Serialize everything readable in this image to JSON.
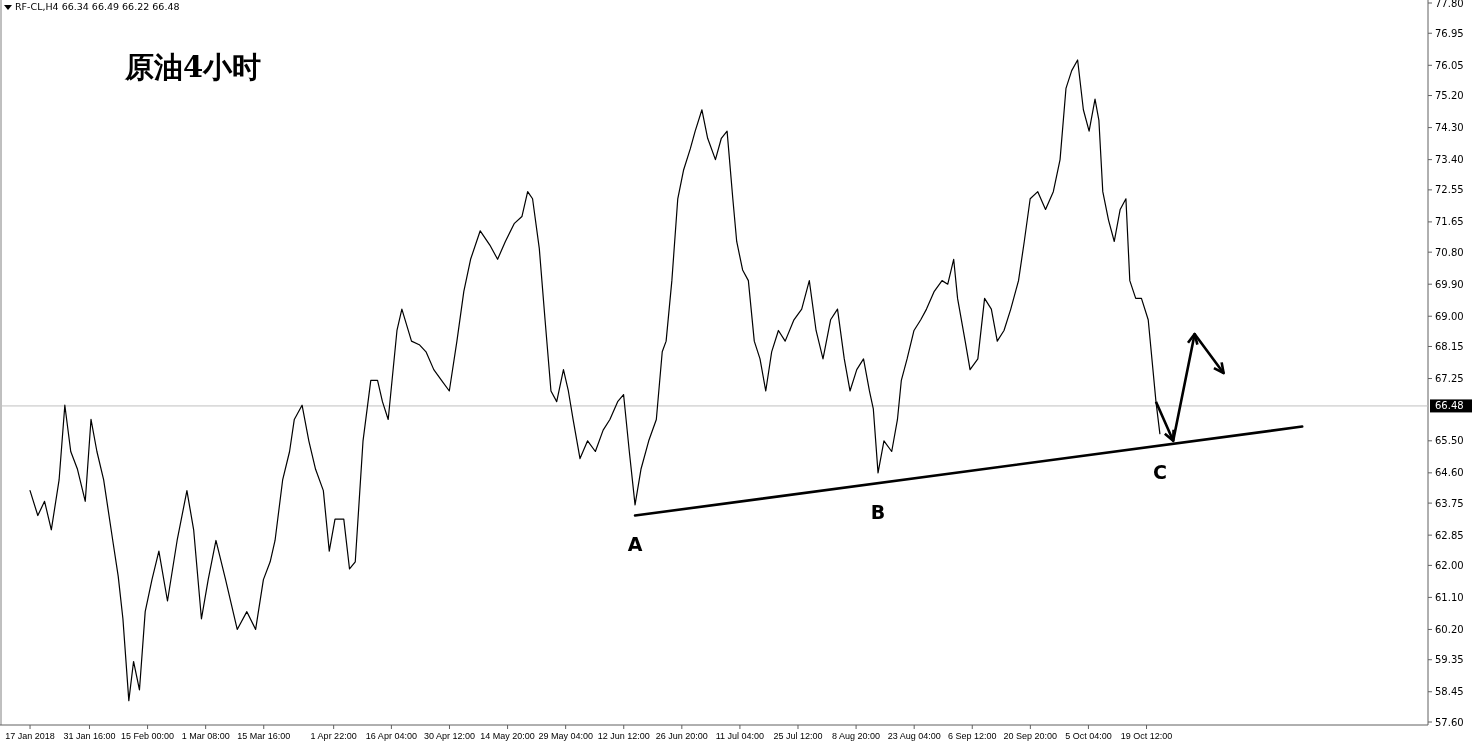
{
  "chart_data": {
    "type": "line",
    "title": "原油4小时",
    "annotations": [
      "RF-CL,H4  66.34 66.49 66.22 66.48",
      {
        "text": "A",
        "x": "2018-06-15T07:00",
        "y": 63.4
      },
      {
        "text": "B",
        "x": "2018-08-14T06:00",
        "y": 64.3
      },
      {
        "text": "C",
        "x": "2018-10-22T19:00",
        "y": 65.4
      }
    ],
    "xlim": [
      "2018-01-09T20:00",
      "2018-12-27T23:00"
    ],
    "ylim": [
      57.6,
      77.8
    ],
    "xticks": [
      {
        "value": "2018-01-17T00:00",
        "label": "17 Jan 2018"
      },
      {
        "value": "2018-01-31T16:00",
        "label": "31 Jan 16:00"
      },
      {
        "value": "2018-02-15T00:00",
        "label": "15 Feb 00:00"
      },
      {
        "value": "2018-03-01T08:00",
        "label": "1 Mar 08:00"
      },
      {
        "value": "2018-03-15T16:00",
        "label": "15 Mar 16:00"
      },
      {
        "value": "2018-04-01T22:00",
        "label": "1 Apr 22:00"
      },
      {
        "value": "2018-04-16T04:00",
        "label": "16 Apr 04:00"
      },
      {
        "value": "2018-04-30T12:00",
        "label": "30 Apr 12:00"
      },
      {
        "value": "2018-05-14T20:00",
        "label": "14 May 20:00"
      },
      {
        "value": "2018-05-29T04:00",
        "label": "29 May 04:00"
      },
      {
        "value": "2018-06-12T12:00",
        "label": "12 Jun 12:00"
      },
      {
        "value": "2018-06-26T20:00",
        "label": "26 Jun 20:00"
      },
      {
        "value": "2018-07-11T04:00",
        "label": "11 Jul 04:00"
      },
      {
        "value": "2018-07-25T12:00",
        "label": "25 Jul 12:00"
      },
      {
        "value": "2018-08-08T20:00",
        "label": "8 Aug 20:00"
      },
      {
        "value": "2018-08-23T04:00",
        "label": "23 Aug 04:00"
      },
      {
        "value": "2018-09-06T12:00",
        "label": "6 Sep 12:00"
      },
      {
        "value": "2018-09-20T20:00",
        "label": "20 Sep 20:00"
      },
      {
        "value": "2018-10-05T04:00",
        "label": "5 Oct 04:00"
      },
      {
        "value": "2018-10-19T12:00",
        "label": "19 Oct 12:00"
      }
    ],
    "yticks": [
      {
        "value": 57.6,
        "label": "57.60"
      },
      {
        "value": 58.45,
        "label": "58.45"
      },
      {
        "value": 59.35,
        "label": "59.35"
      },
      {
        "value": 60.2,
        "label": "60.20"
      },
      {
        "value": 61.1,
        "label": "61.10"
      },
      {
        "value": 62.0,
        "label": "62.00"
      },
      {
        "value": 62.85,
        "label": "62.85"
      },
      {
        "value": 63.75,
        "label": "63.75"
      },
      {
        "value": 64.6,
        "label": "64.60"
      },
      {
        "value": 65.5,
        "label": "65.50"
      },
      {
        "value": 67.25,
        "label": "67.25"
      },
      {
        "value": 68.15,
        "label": "68.15"
      },
      {
        "value": 69.0,
        "label": "69.00"
      },
      {
        "value": 69.9,
        "label": "69.90"
      },
      {
        "value": 70.8,
        "label": "70.80"
      },
      {
        "value": 71.65,
        "label": "71.65"
      },
      {
        "value": 72.55,
        "label": "72.55"
      },
      {
        "value": 73.4,
        "label": "73.40"
      },
      {
        "value": 74.3,
        "label": "74.30"
      },
      {
        "value": 75.2,
        "label": "75.20"
      },
      {
        "value": 76.05,
        "label": "76.05"
      },
      {
        "value": 76.95,
        "label": "76.95"
      },
      {
        "value": 77.8,
        "label": "77.80"
      }
    ],
    "ref_lines": [
      {
        "axis": "y",
        "value": 66.48,
        "label": "66.48",
        "color": "#c0c0c0"
      }
    ],
    "series": [
      {
        "color": "#000000",
        "x": [
          "2018-01-17T00:00",
          "2018-01-18T22:00",
          "2018-01-20T14:00",
          "2018-01-22T06:00",
          "2018-01-24T04:00",
          "2018-01-25T14:00",
          "2018-01-27T01:00",
          "2018-01-28T17:00",
          "2018-01-30T15:00",
          "2018-02-01T01:00",
          "2018-02-02T12:00",
          "2018-02-04T04:00",
          "2018-02-06T13:00",
          "2018-02-07T18:00",
          "2018-02-08T22:00",
          "2018-02-10T09:00",
          "2018-02-11T13:00",
          "2018-02-13T00:00",
          "2018-02-14T10:00",
          "2018-02-16T02:00",
          "2018-02-17T19:00",
          "2018-02-19T22:00",
          "2018-02-22T07:00",
          "2018-02-24T17:00",
          "2018-02-26T09:00",
          "2018-02-28T07:00",
          "2018-03-01T23:00",
          "2018-03-03T21:00",
          "2018-03-06T06:00",
          "2018-03-09T03:00",
          "2018-03-11T12:00",
          "2018-03-13T16:00",
          "2018-03-15T14:00",
          "2018-03-17T06:00",
          "2018-03-18T11:00",
          "2018-03-20T08:00",
          "2018-03-22T01:00",
          "2018-03-23T05:00",
          "2018-03-25T03:00",
          "2018-03-26T19:00",
          "2018-03-28T11:00",
          "2018-03-30T09:00",
          "2018-03-31T20:00",
          "2018-04-02T06:00",
          "2018-04-04T10:00",
          "2018-04-05T20:00",
          "2018-04-07T06:00",
          "2018-04-09T04:00",
          "2018-04-11T02:00",
          "2018-04-12T18:00",
          "2018-04-13T23:00",
          "2018-04-15T09:00",
          "2018-04-17T13:00",
          "2018-04-18T18:00",
          "2018-04-21T03:00",
          "2018-04-23T01:00",
          "2018-04-24T17:00",
          "2018-04-26T15:00",
          "2018-04-28T13:00",
          "2018-04-30T11:00",
          "2018-05-02T08:00",
          "2018-05-04T01:00",
          "2018-05-05T17:00",
          "2018-05-08T02:00",
          "2018-05-10T11:00",
          "2018-05-12T09:00",
          "2018-05-14T07:00",
          "2018-05-16T11:00",
          "2018-05-18T09:00",
          "2018-05-19T19:00",
          "2018-05-21T00:00",
          "2018-05-22T16:00",
          "2018-05-24T02:00",
          "2018-05-25T13:00",
          "2018-05-26T23:00",
          "2018-05-28T15:00",
          "2018-05-29T20:00",
          "2018-05-31T00:00",
          "2018-06-01T17:00",
          "2018-06-03T14:00",
          "2018-06-05T12:00",
          "2018-06-07T10:00",
          "2018-06-09T02:00",
          "2018-06-11T00:00",
          "2018-06-12T11:00",
          "2018-06-13T21:00",
          "2018-06-15T07:00",
          "2018-06-16T18:00",
          "2018-06-18T16:00",
          "2018-06-20T13:00",
          "2018-06-22T00:00",
          "2018-06-22T23:00",
          "2018-06-24T09:00",
          "2018-06-25T20:00",
          "2018-06-27T06:00",
          "2018-06-28T22:00",
          "2018-06-30T03:00",
          "2018-07-01T19:00",
          "2018-07-03T05:00",
          "2018-07-05T03:00",
          "2018-07-06T14:00",
          "2018-07-08T00:00",
          "2018-07-09T10:00",
          "2018-07-10T09:00",
          "2018-07-11T20:00",
          "2018-07-13T06:00",
          "2018-07-14T17:00",
          "2018-07-16T03:00",
          "2018-07-17T13:00",
          "2018-07-19T00:00",
          "2018-07-20T16:00",
          "2018-07-22T08:00",
          "2018-07-24T12:00",
          "2018-07-26T10:00",
          "2018-07-28T07:00",
          "2018-07-29T23:00",
          "2018-07-31T16:00",
          "2018-08-02T13:00",
          "2018-08-04T06:00",
          "2018-08-05T22:00",
          "2018-08-07T08:00",
          "2018-08-09T00:00",
          "2018-08-10T16:00",
          "2018-08-12T03:00",
          "2018-08-13T02:00",
          "2018-08-14T06:00",
          "2018-08-15T17:00",
          "2018-08-17T15:00",
          "2018-08-19T01:00",
          "2018-08-20T00:00",
          "2018-08-21T10:00",
          "2018-08-23T03:00",
          "2018-08-24T19:00",
          "2018-08-26T05:00",
          "2018-08-28T03:00",
          "2018-08-30T01:00",
          "2018-08-31T11:00",
          "2018-09-01T22:00",
          "2018-09-02T21:00",
          "2018-09-04T18:00",
          "2018-09-05T23:00",
          "2018-09-07T21:00",
          "2018-09-09T13:00",
          "2018-09-11T05:00",
          "2018-09-12T16:00",
          "2018-09-14T08:00",
          "2018-09-16T00:00",
          "2018-09-17T22:00",
          "2018-09-19T08:00",
          "2018-09-20T19:00",
          "2018-09-22T16:00",
          "2018-09-24T14:00",
          "2018-09-26T12:00",
          "2018-09-28T04:00",
          "2018-09-29T15:00",
          "2018-10-01T01:00",
          "2018-10-02T12:00",
          "2018-10-03T22:00",
          "2018-10-05T08:00",
          "2018-10-06T19:00",
          "2018-10-07T18:00",
          "2018-10-08T17:00",
          "2018-10-10T03:00",
          "2018-10-11T13:00",
          "2018-10-13T00:00",
          "2018-10-14T10:00",
          "2018-10-15T09:00",
          "2018-10-16T20:00",
          "2018-10-18T06:00",
          "2018-10-19T22:00",
          "2018-10-21T20:00",
          "2018-10-22T19:00"
        ],
        "values": [
          64.1,
          63.4,
          63.8,
          63.0,
          64.4,
          66.5,
          65.2,
          64.7,
          63.8,
          66.1,
          65.2,
          64.4,
          62.6,
          61.7,
          60.5,
          58.2,
          59.3,
          58.5,
          60.7,
          61.6,
          62.4,
          61.0,
          62.7,
          64.1,
          63.0,
          60.5,
          61.6,
          62.7,
          61.6,
          60.2,
          60.7,
          60.2,
          61.6,
          62.1,
          62.7,
          64.4,
          65.2,
          66.1,
          66.5,
          65.5,
          64.7,
          64.1,
          62.4,
          63.3,
          63.3,
          61.9,
          62.1,
          65.5,
          67.2,
          67.2,
          66.6,
          66.1,
          68.6,
          69.2,
          68.3,
          68.2,
          68.0,
          67.5,
          67.2,
          66.9,
          68.3,
          69.7,
          70.6,
          71.4,
          71.0,
          70.6,
          71.1,
          71.6,
          71.8,
          72.5,
          72.3,
          70.9,
          68.9,
          66.9,
          66.6,
          67.5,
          66.9,
          66.1,
          65.0,
          65.5,
          65.2,
          65.8,
          66.1,
          66.6,
          66.8,
          65.2,
          63.7,
          64.7,
          65.5,
          66.1,
          68.0,
          68.3,
          70.0,
          72.3,
          73.1,
          73.7,
          74.2,
          74.8,
          74.0,
          73.4,
          74.0,
          74.2,
          72.3,
          71.1,
          70.3,
          70.0,
          68.3,
          67.8,
          66.9,
          68.0,
          68.6,
          68.3,
          68.9,
          69.2,
          70.0,
          68.6,
          67.8,
          68.9,
          69.2,
          67.8,
          66.9,
          67.5,
          67.8,
          66.9,
          66.4,
          64.6,
          65.5,
          65.2,
          66.1,
          67.2,
          67.8,
          68.6,
          68.9,
          69.2,
          69.7,
          70.0,
          69.9,
          70.6,
          69.5,
          68.3,
          67.5,
          67.8,
          69.5,
          69.2,
          68.3,
          68.6,
          69.2,
          70.0,
          71.1,
          72.3,
          72.5,
          72.0,
          72.5,
          73.4,
          75.4,
          75.9,
          76.2,
          74.8,
          74.2,
          75.1,
          74.5,
          72.5,
          71.7,
          71.1,
          72.0,
          72.3,
          70.0,
          69.5,
          69.5,
          68.9,
          66.6,
          65.7
        ]
      },
      {
        "type": "line",
        "color": "#000000",
        "x": [
          "2018-06-15T07:00",
          "2018-11-26T22:00"
        ],
        "values": [
          63.4,
          65.9
        ]
      }
    ]
  }
}
